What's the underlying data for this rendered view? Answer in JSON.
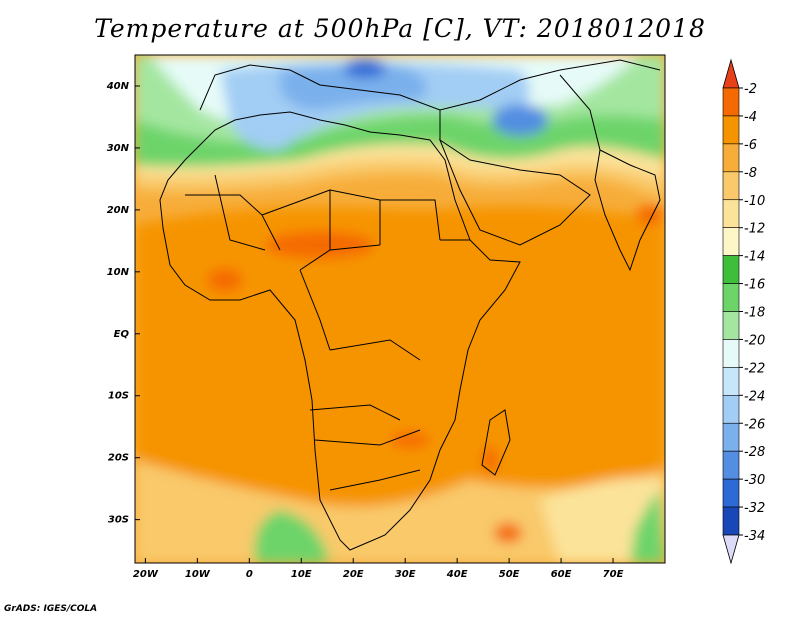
{
  "title": "Temperature at 500hPa [C], VT: 2018012018",
  "credit": "GrADS: IGES/COLA",
  "map": {
    "lon_range": [
      -22,
      80
    ],
    "lat_range": [
      -37,
      45
    ],
    "lat_ticks": [
      {
        "value": 40,
        "label": "40N"
      },
      {
        "value": 30,
        "label": "30N"
      },
      {
        "value": 20,
        "label": "20N"
      },
      {
        "value": 10,
        "label": "10N"
      },
      {
        "value": 0,
        "label": "EQ"
      },
      {
        "value": -10,
        "label": "10S"
      },
      {
        "value": -20,
        "label": "20S"
      },
      {
        "value": -30,
        "label": "30S"
      }
    ],
    "lon_ticks": [
      {
        "value": -20,
        "label": "20W"
      },
      {
        "value": -10,
        "label": "10W"
      },
      {
        "value": 0,
        "label": "0"
      },
      {
        "value": 10,
        "label": "10E"
      },
      {
        "value": 20,
        "label": "20E"
      },
      {
        "value": 30,
        "label": "30E"
      },
      {
        "value": 40,
        "label": "40E"
      },
      {
        "value": 50,
        "label": "50E"
      },
      {
        "value": 60,
        "label": "60E"
      },
      {
        "value": 70,
        "label": "70E"
      }
    ]
  },
  "colorbar": {
    "levels": [
      -2,
      -4,
      -6,
      -8,
      -10,
      -12,
      -14,
      -16,
      -18,
      -20,
      -22,
      -24,
      -26,
      -28,
      -30,
      -32,
      -34
    ],
    "colors": {
      "top_arrow": "#e8401a",
      "bottom_arrow": "#dcdcf8",
      "bands": [
        "#f56a00",
        "#f69400",
        "#f7ad3a",
        "#f9c96b",
        "#fbe39a",
        "#fdf6c6",
        "#3fbe3c",
        "#6dd46a",
        "#a4e6a0",
        "#e6fbf8",
        "#c8e6fa",
        "#a2cdf4",
        "#7ab0ec",
        "#538ee2",
        "#2e6ad6",
        "#1848b8",
        "#0c2a8a",
        "#061a66"
      ]
    }
  }
}
